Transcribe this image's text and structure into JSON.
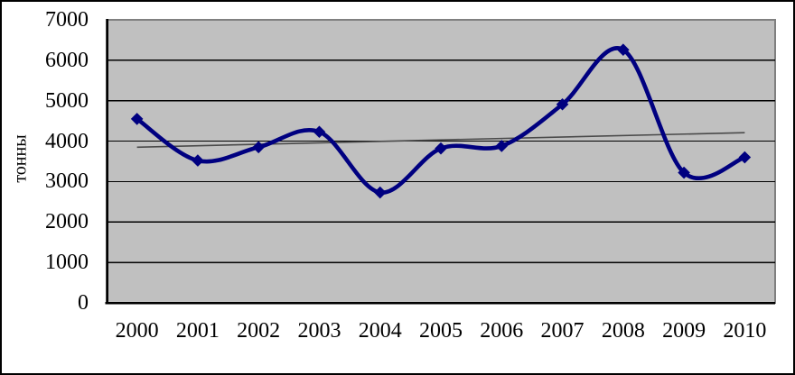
{
  "chart_data": {
    "type": "line",
    "title": "",
    "xlabel": "",
    "ylabel": "тонны",
    "categories": [
      "2000",
      "2001",
      "2002",
      "2003",
      "2004",
      "2005",
      "2006",
      "2007",
      "2008",
      "2009",
      "2010"
    ],
    "series": [
      {
        "name": "",
        "values": [
          4550,
          3520,
          3850,
          4230,
          2730,
          3820,
          3880,
          4910,
          6260,
          3220,
          3600
        ],
        "color": "#000080",
        "marker": "diamond",
        "smooth": true
      }
    ],
    "trendline": {
      "type": "linear",
      "start_value": 3850,
      "end_value": 4210,
      "color": "#4a4a4a"
    },
    "ylim": [
      0,
      7000
    ],
    "y_ticks": [
      0,
      1000,
      2000,
      3000,
      4000,
      5000,
      6000,
      7000
    ],
    "grid": true,
    "legend_position": "none",
    "colors": {
      "plot_background": "#c0c0c0",
      "plot_border": "#808080",
      "gridline": "#000000",
      "axis": "#000000",
      "frame_border": "#000000",
      "page_background": "#ffffff"
    }
  }
}
